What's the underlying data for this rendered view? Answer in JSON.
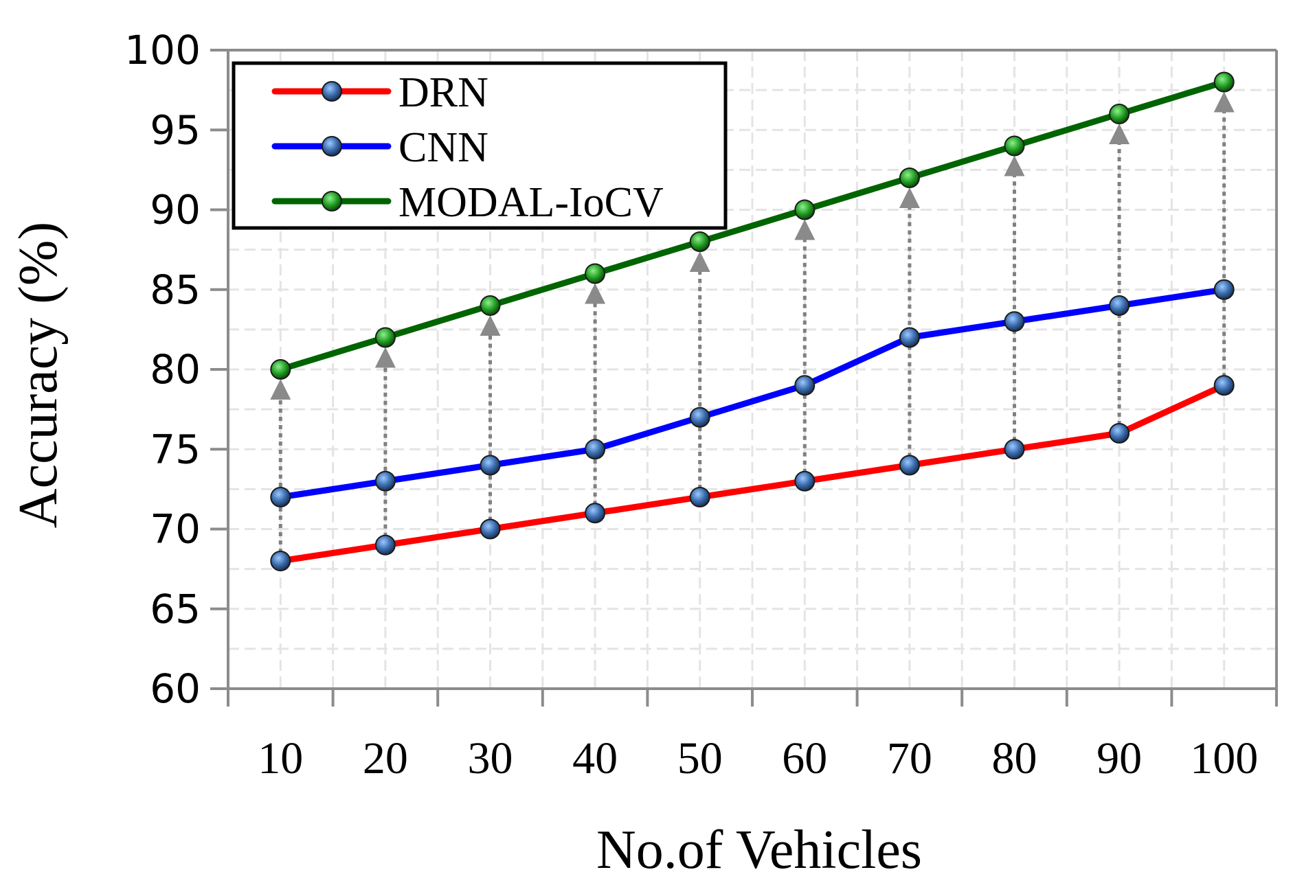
{
  "chart_data": {
    "type": "line",
    "title": "",
    "xlabel": "No.of Vehicles",
    "ylabel": "Accuracy (%)",
    "categories": [
      "10",
      "20",
      "30",
      "40",
      "50",
      "60",
      "70",
      "80",
      "90",
      "100"
    ],
    "ylim": [
      60,
      100
    ],
    "yticks": [
      "60",
      "65",
      "70",
      "75",
      "80",
      "85",
      "90",
      "95",
      "100"
    ],
    "grid": true,
    "legend_position": "top-left",
    "series": [
      {
        "name": "DRN",
        "color": "#ff0000",
        "values": [
          68,
          69,
          70,
          71,
          72,
          73,
          74,
          75,
          76,
          79
        ]
      },
      {
        "name": "CNN",
        "color": "#0000ff",
        "values": [
          72,
          73,
          74,
          75,
          77,
          79,
          82,
          83,
          84,
          85
        ]
      },
      {
        "name": "MODAL-IoCV",
        "color": "#006400",
        "values": [
          80,
          82,
          84,
          86,
          88,
          90,
          92,
          94,
          96,
          98
        ]
      }
    ],
    "annotations": "dotted gray arrows from DRN points to MODAL-IoCV points at every category"
  }
}
